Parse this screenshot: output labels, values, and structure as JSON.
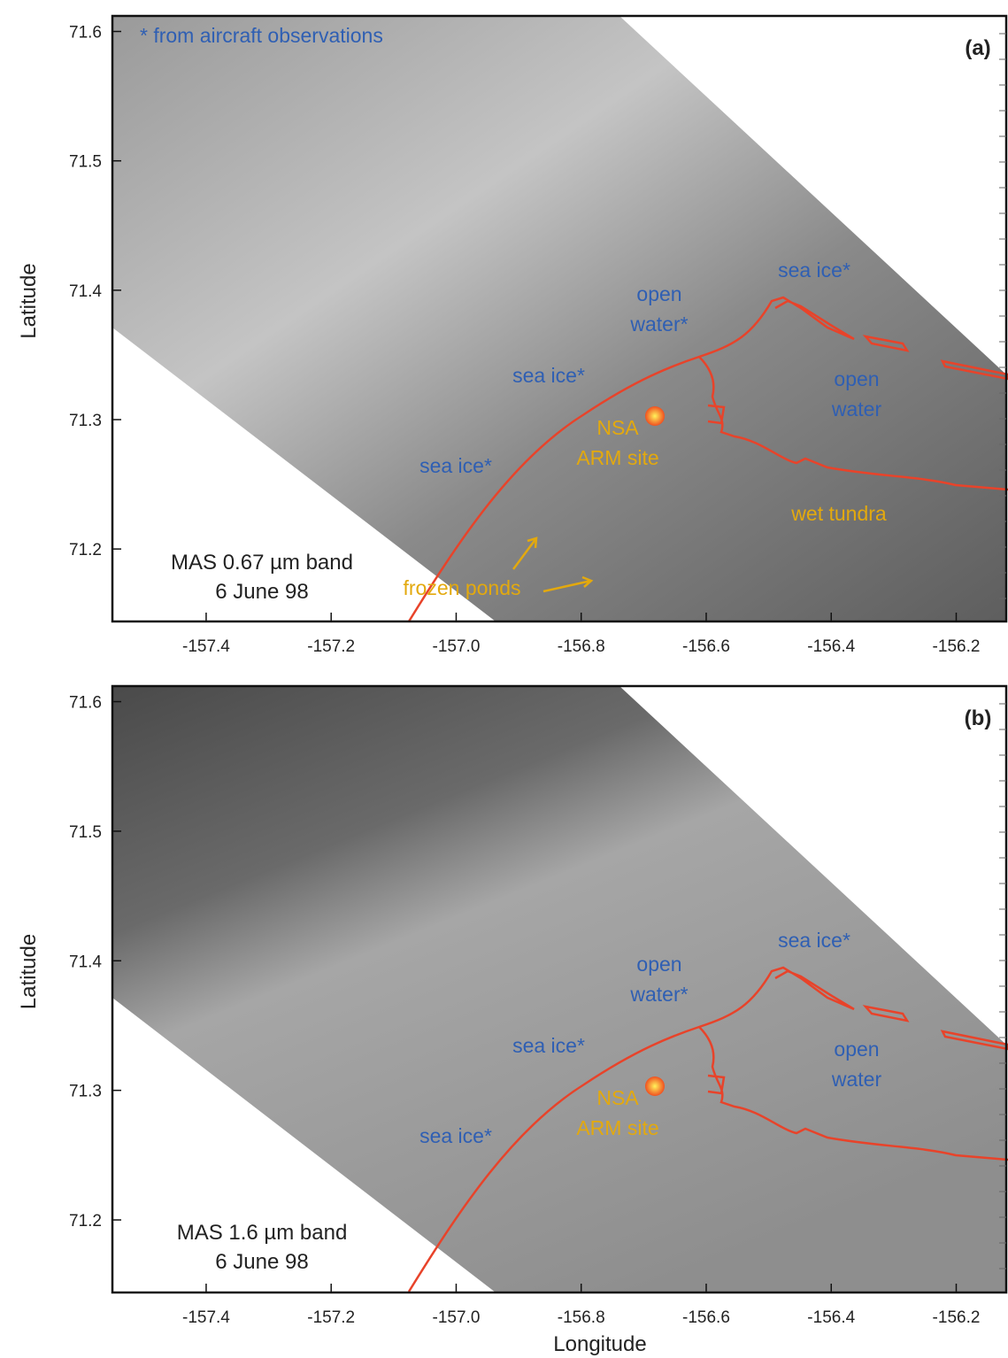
{
  "chart_data": [
    {
      "type": "image",
      "panel_label": "(a)",
      "note": "* from aircraft observations",
      "band_label": [
        "MAS 0.67 µm band",
        "6 June 98"
      ],
      "annotations": [
        [
          "sea ice*"
        ],
        [
          "open",
          "water*"
        ],
        [
          "sea ice*"
        ],
        [
          "sea ice*"
        ],
        [
          "open",
          "water"
        ],
        [
          "NSA",
          "ARM site"
        ],
        [
          "wet tundra"
        ],
        [
          "frozen ponds"
        ]
      ],
      "ylabel": "Latitude",
      "xlim": [
        -157.55,
        -156.12
      ],
      "ylim": [
        71.144,
        71.612
      ],
      "xticks": [
        -157.4,
        -157.2,
        {
          "value": -157.0,
          "label": "-157.0"
        },
        -156.8,
        -156.6,
        -156.4,
        -156.2
      ],
      "yticks": [
        71.2,
        71.3,
        71.4,
        71.5,
        71.6
      ]
    },
    {
      "type": "image",
      "panel_label": "(b)",
      "band_label": [
        "MAS 1.6 µm band",
        "6 June 98"
      ],
      "annotations": [
        [
          "sea ice*"
        ],
        [
          "open",
          "water*"
        ],
        [
          "sea ice*"
        ],
        [
          "sea ice*"
        ],
        [
          "open",
          "water"
        ],
        [
          "NSA",
          "ARM site"
        ]
      ],
      "ylabel": "Latitude",
      "xlabel": "Longitude",
      "xlim": [
        -157.55,
        -156.12
      ],
      "ylim": [
        71.144,
        71.612
      ],
      "xticks": [
        -157.4,
        -157.2,
        {
          "value": -157.0,
          "label": "-157.0"
        },
        -156.8,
        -156.6,
        -156.4,
        -156.2
      ],
      "yticks": [
        71.2,
        71.3,
        71.4,
        71.5,
        71.6
      ]
    }
  ]
}
